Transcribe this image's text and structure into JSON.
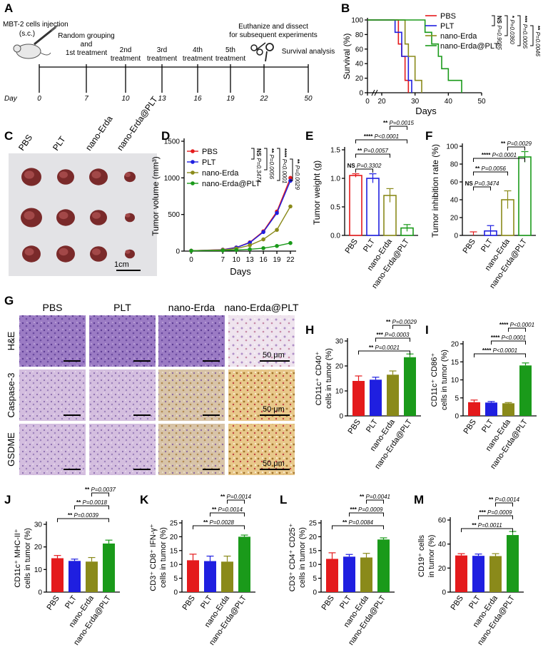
{
  "colors": {
    "PBS": "#e41a1c",
    "PLT": "#1f1fe0",
    "nano-Erda": "#8a8a1a",
    "nano-Erda@PLT": "#1a9a1a"
  },
  "groups": [
    "PBS",
    "PLT",
    "nano-Erda",
    "nano-Erda@PLT"
  ],
  "panelA": {
    "letter": "A",
    "injection": "MBT-2 cells injection",
    "injection_route": "(s.c.)",
    "steps": [
      "Random grouping and 1st treatment",
      "2nd treatment",
      "3rd treatment",
      "4th treatment",
      "5th treatment",
      "Euthanize and dissect for subsequent experiments",
      "Survival analysis"
    ],
    "day_label": "Day",
    "days": [
      "0",
      "7",
      "10",
      "13",
      "16",
      "19",
      "22",
      "50"
    ]
  },
  "panelC": {
    "letter": "C",
    "groups": [
      "PBS",
      "PLT",
      "nano-Erda",
      "nano-Erda@PLT"
    ],
    "scale": "1cm"
  },
  "panelG": {
    "letter": "G",
    "columns": [
      "PBS",
      "PLT",
      "nano-Erda",
      "nano-Erda@PLT"
    ],
    "rows": [
      "H&E",
      "Caspase-3",
      "GSDME"
    ],
    "scale": "50 μm"
  },
  "chart_data": [
    {
      "panel": "B",
      "type": "line",
      "xlabel": "Days",
      "ylabel": "Survival (%)",
      "xticks": [
        "0",
        "20",
        "30",
        "40",
        "50"
      ],
      "yticks": [
        "0",
        "20",
        "40",
        "60",
        "80",
        "100"
      ],
      "series": [
        {
          "name": "PBS",
          "x": [
            0,
            22,
            25,
            26,
            27,
            28
          ],
          "y": [
            100,
            100,
            67,
            50,
            17,
            0
          ]
        },
        {
          "name": "PLT",
          "x": [
            0,
            23,
            24,
            26,
            28,
            29
          ],
          "y": [
            100,
            100,
            83,
            50,
            17,
            0
          ]
        },
        {
          "name": "nano-Erda",
          "x": [
            0,
            26,
            27,
            28,
            30,
            32
          ],
          "y": [
            100,
            100,
            67,
            50,
            17,
            0
          ]
        },
        {
          "name": "nano-Erda@PLT",
          "x": [
            0,
            29,
            33,
            35,
            37,
            38,
            40,
            44
          ],
          "y": [
            100,
            100,
            83,
            67,
            50,
            33,
            17,
            0
          ]
        }
      ],
      "stats": [
        "NS",
        "P=0.9085",
        "*",
        "P=0.0360",
        "***",
        "P=0.0005",
        "**",
        "P=0.0046"
      ]
    },
    {
      "panel": "D",
      "type": "line",
      "xlabel": "Days",
      "ylabel": "Tumor volume (mm³)",
      "categories": [
        "0",
        "7",
        "10",
        "13",
        "16",
        "19",
        "22"
      ],
      "ylim": [
        0,
        1500
      ],
      "yticks": [
        "0",
        "500",
        "1000",
        "1500"
      ],
      "series": [
        {
          "name": "PBS",
          "values": [
            5,
            20,
            50,
            120,
            270,
            540,
            1000
          ]
        },
        {
          "name": "PLT",
          "values": [
            5,
            18,
            48,
            115,
            260,
            520,
            960
          ]
        },
        {
          "name": "nano-Erda",
          "values": [
            5,
            15,
            35,
            80,
            160,
            290,
            610
          ]
        },
        {
          "name": "nano-Erda@PLT",
          "values": [
            4,
            8,
            15,
            25,
            40,
            70,
            110
          ]
        }
      ],
      "stats": [
        "NS",
        "P=0.3474",
        "**",
        "P=0.0056",
        "****",
        "P<0.0001",
        "**",
        "P=0.0029"
      ]
    },
    {
      "panel": "E",
      "type": "bar",
      "ylabel": "Tumor weight (g)",
      "categories": [
        "PBS",
        "PLT",
        "nano-Erda",
        "nano-Erda@PLT"
      ],
      "values": [
        1.05,
        1.0,
        0.7,
        0.13
      ],
      "errors": [
        0.03,
        0.08,
        0.12,
        0.06
      ],
      "ylim": [
        0,
        1.5
      ],
      "yticks": [
        "0.0",
        "0.5",
        "1.0",
        "1.5"
      ],
      "stats": [
        "NS",
        "P=0.3302",
        "**",
        "P=0.0057",
        "****",
        "P<0.0001",
        "**",
        "P=0.0015"
      ]
    },
    {
      "panel": "F",
      "type": "bar",
      "ylabel": "Tumor inhibition rate (%)",
      "categories": [
        "PBS",
        "PLT",
        "nano-Erda",
        "nano-Erda@PLT"
      ],
      "values": [
        0,
        5,
        40,
        88
      ],
      "errors": [
        4,
        6,
        10,
        6
      ],
      "ylim": [
        0,
        100
      ],
      "yticks": [
        "0",
        "20",
        "40",
        "60",
        "80",
        "100"
      ],
      "stats": [
        "NS",
        "P=0.3474",
        "**",
        "P=0.0056",
        "****",
        "P<0.0001",
        "**",
        "P=0.0029"
      ]
    },
    {
      "panel": "H",
      "type": "bar",
      "ylabel": "CD11c⁺ CD40⁺ cells in tumor (%)",
      "categories": [
        "PBS",
        "PLT",
        "nano-Erda",
        "nano-Erda@PLT"
      ],
      "values": [
        14,
        14.5,
        16.5,
        23.5
      ],
      "errors": [
        2,
        1,
        1.5,
        1.3
      ],
      "ylim": [
        0,
        30
      ],
      "yticks": [
        "0",
        "10",
        "20",
        "30"
      ],
      "stats": [
        "**",
        "P=0.0021",
        "***",
        "P=0.0003",
        "**",
        "P=0.0029"
      ]
    },
    {
      "panel": "I",
      "type": "bar",
      "ylabel": "CD11c⁺ CD86⁺ cells in tumor (%)",
      "categories": [
        "PBS",
        "PLT",
        "nano-Erda",
        "nano-Erda@PLT"
      ],
      "values": [
        3.8,
        3.7,
        3.5,
        14
      ],
      "errors": [
        0.6,
        0.3,
        0.2,
        0.7
      ],
      "ylim": [
        0,
        20
      ],
      "yticks": [
        "0",
        "5",
        "10",
        "15",
        "20"
      ],
      "stats": [
        "****",
        "P<0.0001",
        "****",
        "P<0.0001",
        "****",
        "P<0.0001"
      ]
    },
    {
      "panel": "J",
      "type": "bar",
      "ylabel": "CD11c⁺ MHC-II⁺ cells in tumor (%)",
      "categories": [
        "PBS",
        "PLT",
        "nano-Erda",
        "nano-Erda@PLT"
      ],
      "values": [
        15,
        13.8,
        13.5,
        21.5
      ],
      "errors": [
        1.2,
        0.8,
        1.8,
        1.5
      ],
      "ylim": [
        0,
        30
      ],
      "yticks": [
        "0",
        "10",
        "20",
        "30"
      ],
      "stats": [
        "**",
        "P=0.0039",
        "**",
        "P=0.0018",
        "**",
        "P=0.0037"
      ]
    },
    {
      "panel": "K",
      "type": "bar",
      "ylabel": "CD3⁺ CD8⁺ IFN-γ⁺ cells in tumor (%)",
      "categories": [
        "PBS",
        "PLT",
        "nano-Erda",
        "nano-Erda@PLT"
      ],
      "values": [
        11.5,
        11.2,
        11,
        20
      ],
      "errors": [
        2.2,
        1.8,
        2,
        0.6
      ],
      "ylim": [
        0,
        25
      ],
      "yticks": [
        "0",
        "5",
        "10",
        "15",
        "20",
        "25"
      ],
      "stats": [
        "**",
        "P=0.0028",
        "**",
        "P=0.0014",
        "**",
        "P=0.0014"
      ]
    },
    {
      "panel": "L",
      "type": "bar",
      "ylabel": "CD3⁺ CD4⁺ CD25⁺ cells in tumor (%)",
      "categories": [
        "PBS",
        "PLT",
        "nano-Erda",
        "nano-Erda@PLT"
      ],
      "values": [
        12,
        12.8,
        12.5,
        19
      ],
      "errors": [
        2.2,
        0.8,
        1.5,
        0.6
      ],
      "ylim": [
        0,
        25
      ],
      "yticks": [
        "0",
        "5",
        "10",
        "15",
        "20",
        "25"
      ],
      "stats": [
        "**",
        "P=0.0084",
        "***",
        "P=0.0009",
        "**",
        "P=0.0041"
      ]
    },
    {
      "panel": "M",
      "type": "bar",
      "ylabel": "CD19⁺ cells in tumor (%)",
      "categories": [
        "PBS",
        "PLT",
        "nano-Erda",
        "nano-Erda@PLT"
      ],
      "values": [
        30.5,
        30.2,
        30,
        47.5
      ],
      "errors": [
        1.5,
        1.5,
        2,
        3
      ],
      "ylim": [
        0,
        60
      ],
      "yticks": [
        "0",
        "20",
        "40",
        "60"
      ],
      "stats": [
        "**",
        "P=0.0011",
        "***",
        "P=0.0009",
        "**",
        "P=0.0014"
      ]
    }
  ]
}
